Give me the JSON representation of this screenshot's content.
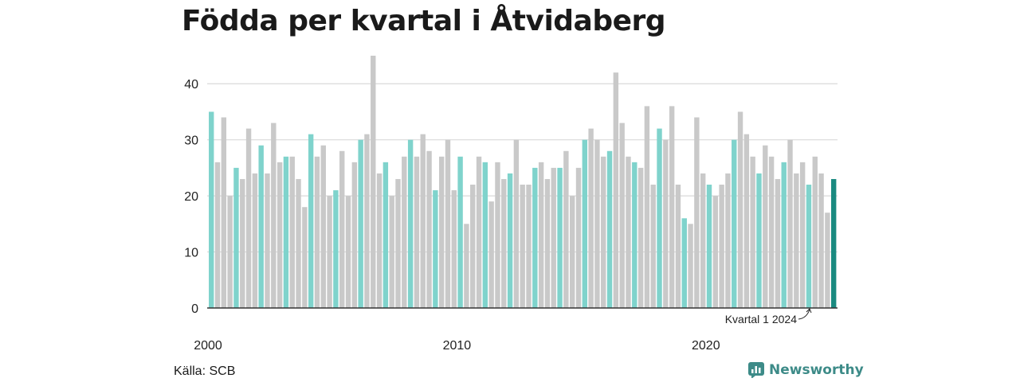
{
  "title": "Födda per kvartal i Åtvidaberg",
  "source": "Källa: SCB",
  "brand": {
    "name": "Newsworthy",
    "icon": "newsworthy-logo-icon"
  },
  "colors": {
    "q1": "#7fd3cc",
    "other": "#c9c9c9",
    "highlight": "#1a8a80",
    "grid": "#d9d9d9",
    "axis": "#333333"
  },
  "chart_data": {
    "type": "bar",
    "title": "Födda per kvartal i Åtvidaberg",
    "xlabel": "",
    "ylabel": "",
    "ylim": [
      0,
      45
    ],
    "yticks": [
      0,
      10,
      20,
      30,
      40
    ],
    "xtick_labels": [
      "2000",
      "2010",
      "2020"
    ],
    "start_year": 2000,
    "periods_per_year": 4,
    "grid": "horizontal",
    "annotation": {
      "text": "Kvartal 1 2024",
      "target": "2024 Q1"
    },
    "values": [
      35,
      26,
      34,
      20,
      25,
      23,
      32,
      24,
      29,
      24,
      33,
      26,
      27,
      27,
      23,
      18,
      31,
      27,
      29,
      20,
      21,
      28,
      20,
      26,
      30,
      31,
      45,
      24,
      26,
      20,
      23,
      27,
      30,
      27,
      31,
      28,
      21,
      27,
      30,
      21,
      27,
      15,
      22,
      27,
      26,
      19,
      26,
      23,
      24,
      30,
      22,
      22,
      25,
      26,
      23,
      25,
      25,
      28,
      20,
      25,
      30,
      32,
      30,
      27,
      28,
      42,
      33,
      27,
      26,
      25,
      36,
      22,
      32,
      30,
      36,
      22,
      16,
      15,
      34,
      24,
      22,
      20,
      22,
      24,
      30,
      35,
      31,
      27,
      24,
      29,
      27,
      23,
      26,
      30,
      24,
      26,
      22,
      27,
      24,
      17,
      23
    ]
  }
}
